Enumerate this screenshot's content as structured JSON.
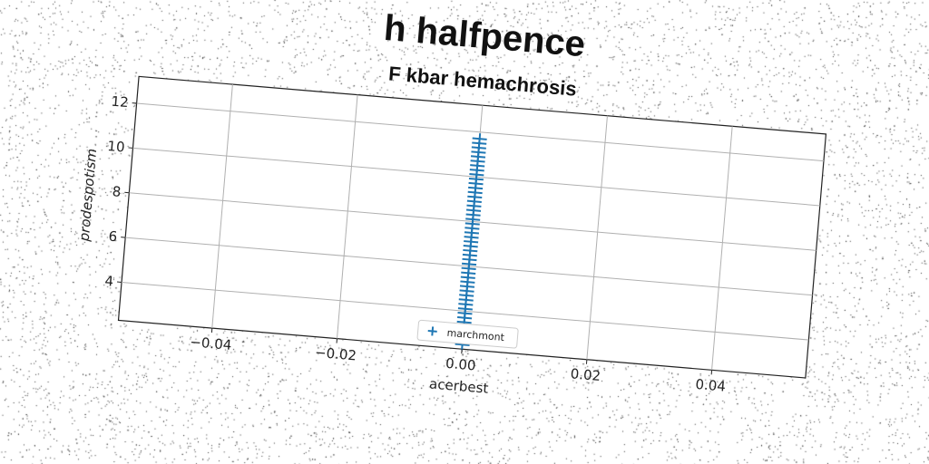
{
  "chart_data": {
    "type": "scatter",
    "title": "h halfpence",
    "subtitle": "F kbar hemachrosis",
    "xlabel": "acerbest",
    "ylabel": "prodespotism",
    "xlim": [
      -0.055,
      0.055
    ],
    "ylim": [
      2.3,
      13.2
    ],
    "xticks": [
      -0.04,
      -0.02,
      0.0,
      0.02,
      0.04
    ],
    "xtick_labels": [
      "−0.04",
      "−0.02",
      "0.00",
      "0.02",
      "0.04"
    ],
    "yticks": [
      4,
      6,
      8,
      10,
      12
    ],
    "ytick_labels": [
      "4",
      "6",
      "8",
      "10",
      "12"
    ],
    "grid": true,
    "legend_position": "lower-center",
    "series": [
      {
        "name": "marchmont",
        "marker": "plus",
        "color": "#1f77b4",
        "x": [
          0.0,
          0.0,
          0.0,
          0.0,
          0.0,
          0.0,
          0.0,
          0.0,
          0.0,
          0.0,
          0.0,
          0.0,
          0.0,
          0.0,
          0.0,
          0.0,
          0.0,
          0.0,
          0.0,
          0.0,
          0.0,
          0.0,
          0.0,
          0.0,
          0.0,
          0.0,
          0.0,
          0.0,
          0.0,
          0.0,
          0.0,
          0.0,
          0.0,
          0.0,
          0.0,
          0.0,
          0.0,
          0.0,
          0.0,
          0.0,
          0.0,
          0.0,
          0.0,
          0.0,
          0.0,
          0.0,
          0.0
        ],
        "y": [
          2.5,
          2.7,
          2.9,
          3.1,
          3.3,
          3.5,
          3.7,
          3.9,
          4.1,
          4.3,
          4.5,
          4.7,
          4.9,
          5.1,
          5.3,
          5.5,
          5.7,
          5.9,
          6.1,
          6.3,
          6.5,
          6.7,
          6.9,
          7.1,
          7.3,
          7.5,
          7.7,
          7.9,
          8.1,
          8.3,
          8.5,
          8.7,
          8.9,
          9.1,
          9.3,
          9.5,
          9.7,
          9.9,
          10.1,
          10.3,
          10.5,
          10.7,
          10.9,
          11.1,
          11.3,
          11.5,
          11.7
        ]
      }
    ]
  }
}
